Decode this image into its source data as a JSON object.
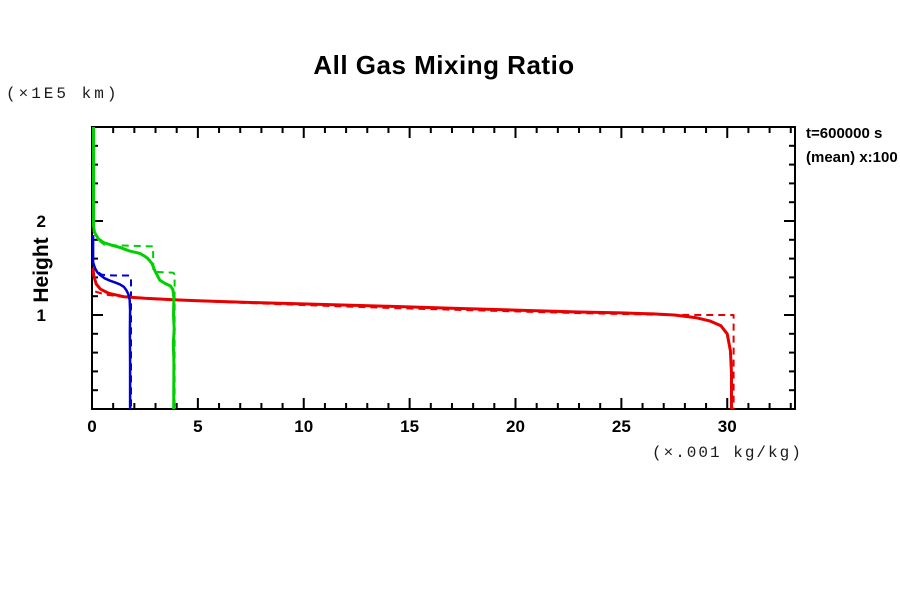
{
  "header": {
    "title": "All Gas Mixing Ratio"
  },
  "labels": {
    "y_unit": "(×1E5 km)",
    "x_unit": "(×.001 kg/kg)",
    "y_axis_title": "Height"
  },
  "legend": {
    "time": "t=600000 s",
    "mean": "(mean) x:100"
  },
  "chart_data": {
    "type": "line",
    "title": "All Gas Mixing Ratio",
    "xlabel": "(×.001 kg/kg)",
    "ylabel": "Height (×1E5 km)",
    "xlim": [
      0,
      33.2
    ],
    "ylim": [
      0,
      3.0
    ],
    "x_major_ticks": [
      0,
      5,
      10,
      15,
      20,
      25,
      30
    ],
    "x_minor_step": 1,
    "y_major_ticks": [
      1,
      2
    ],
    "y_minor_step": 0.2,
    "grid": false,
    "legend_position": "top-right-outside",
    "annotations": [
      "t=600000 s",
      "(mean) x:100"
    ],
    "axis_color": "#000000",
    "series": [
      {
        "name": "red-dashed",
        "color": "#e80000",
        "style": "dashed",
        "width": 2,
        "points": [
          [
            0.15,
            1.25
          ],
          [
            0.6,
            1.218
          ],
          [
            1.5,
            1.192
          ],
          [
            3,
            1.168
          ],
          [
            5,
            1.148
          ],
          [
            8,
            1.122
          ],
          [
            11,
            1.098
          ],
          [
            14,
            1.076
          ],
          [
            17,
            1.056
          ],
          [
            20,
            1.038
          ],
          [
            23,
            1.02
          ],
          [
            26,
            1.006
          ],
          [
            27.5,
            1.001
          ],
          [
            30.3,
            1.0
          ],
          [
            30.3,
            0.0
          ]
        ]
      },
      {
        "name": "blue-dashed",
        "color": "#0000d0",
        "style": "dashed",
        "width": 2,
        "points": [
          [
            0.05,
            1.56
          ],
          [
            0.2,
            1.47
          ],
          [
            0.45,
            1.43
          ],
          [
            0.8,
            1.421
          ],
          [
            1.7,
            1.42
          ],
          [
            1.84,
            1.41
          ],
          [
            1.84,
            0.0
          ]
        ]
      },
      {
        "name": "green-dashed",
        "color": "#00d000",
        "style": "dashed",
        "width": 2,
        "points": [
          [
            0.05,
            1.9
          ],
          [
            0.3,
            1.8
          ],
          [
            0.6,
            1.745
          ],
          [
            2.88,
            1.73
          ],
          [
            2.9,
            1.46
          ],
          [
            3.85,
            1.45
          ],
          [
            3.9,
            1.43
          ],
          [
            3.9,
            0.0
          ]
        ]
      },
      {
        "name": "red-solid",
        "color": "#e80000",
        "style": "solid",
        "width": 3,
        "points": [
          [
            0.05,
            1.5
          ],
          [
            0.08,
            1.42
          ],
          [
            0.2,
            1.33
          ],
          [
            0.4,
            1.275
          ],
          [
            0.8,
            1.23
          ],
          [
            1.5,
            1.195
          ],
          [
            2.5,
            1.178
          ],
          [
            3.85,
            1.163
          ],
          [
            5,
            1.152
          ],
          [
            8,
            1.13
          ],
          [
            11,
            1.112
          ],
          [
            14,
            1.093
          ],
          [
            17,
            1.072
          ],
          [
            20,
            1.052
          ],
          [
            23,
            1.032
          ],
          [
            25,
            1.022
          ],
          [
            26.5,
            1.012
          ],
          [
            27.5,
            1.0
          ],
          [
            28.5,
            0.972
          ],
          [
            29.2,
            0.935
          ],
          [
            29.7,
            0.885
          ],
          [
            30.0,
            0.8
          ],
          [
            30.15,
            0.62
          ],
          [
            30.2,
            0.38
          ],
          [
            30.2,
            0.0
          ]
        ]
      },
      {
        "name": "blue-solid",
        "color": "#0000d0",
        "style": "solid",
        "width": 2.5,
        "points": [
          [
            0.05,
            1.85
          ],
          [
            0.05,
            1.56
          ],
          [
            0.13,
            1.5
          ],
          [
            0.25,
            1.455
          ],
          [
            0.38,
            1.425
          ],
          [
            0.6,
            1.39
          ],
          [
            0.85,
            1.365
          ],
          [
            1.1,
            1.345
          ],
          [
            1.32,
            1.325
          ],
          [
            1.5,
            1.3
          ],
          [
            1.62,
            1.265
          ],
          [
            1.72,
            1.22
          ],
          [
            1.78,
            1.16
          ],
          [
            1.8,
            1.05
          ],
          [
            1.79,
            0.8
          ],
          [
            1.8,
            0.5
          ],
          [
            1.8,
            0.0
          ]
        ]
      },
      {
        "name": "green-solid",
        "color": "#00d000",
        "style": "solid",
        "width": 3,
        "points": [
          [
            0.07,
            3.0
          ],
          [
            0.07,
            2.2
          ],
          [
            0.07,
            1.95
          ],
          [
            0.12,
            1.88
          ],
          [
            0.3,
            1.81
          ],
          [
            0.55,
            1.77
          ],
          [
            0.9,
            1.745
          ],
          [
            1.3,
            1.72
          ],
          [
            1.79,
            1.68
          ],
          [
            2.26,
            1.655
          ],
          [
            2.5,
            1.625
          ],
          [
            2.64,
            1.6
          ],
          [
            2.83,
            1.55
          ],
          [
            2.97,
            1.47
          ],
          [
            3.2,
            1.37
          ],
          [
            3.45,
            1.335
          ],
          [
            3.7,
            1.31
          ],
          [
            3.82,
            1.27
          ],
          [
            3.87,
            1.18
          ],
          [
            3.85,
            1.0
          ],
          [
            3.88,
            0.85
          ],
          [
            3.84,
            0.7
          ],
          [
            3.87,
            0.5
          ],
          [
            3.86,
            0.0
          ]
        ]
      }
    ]
  }
}
